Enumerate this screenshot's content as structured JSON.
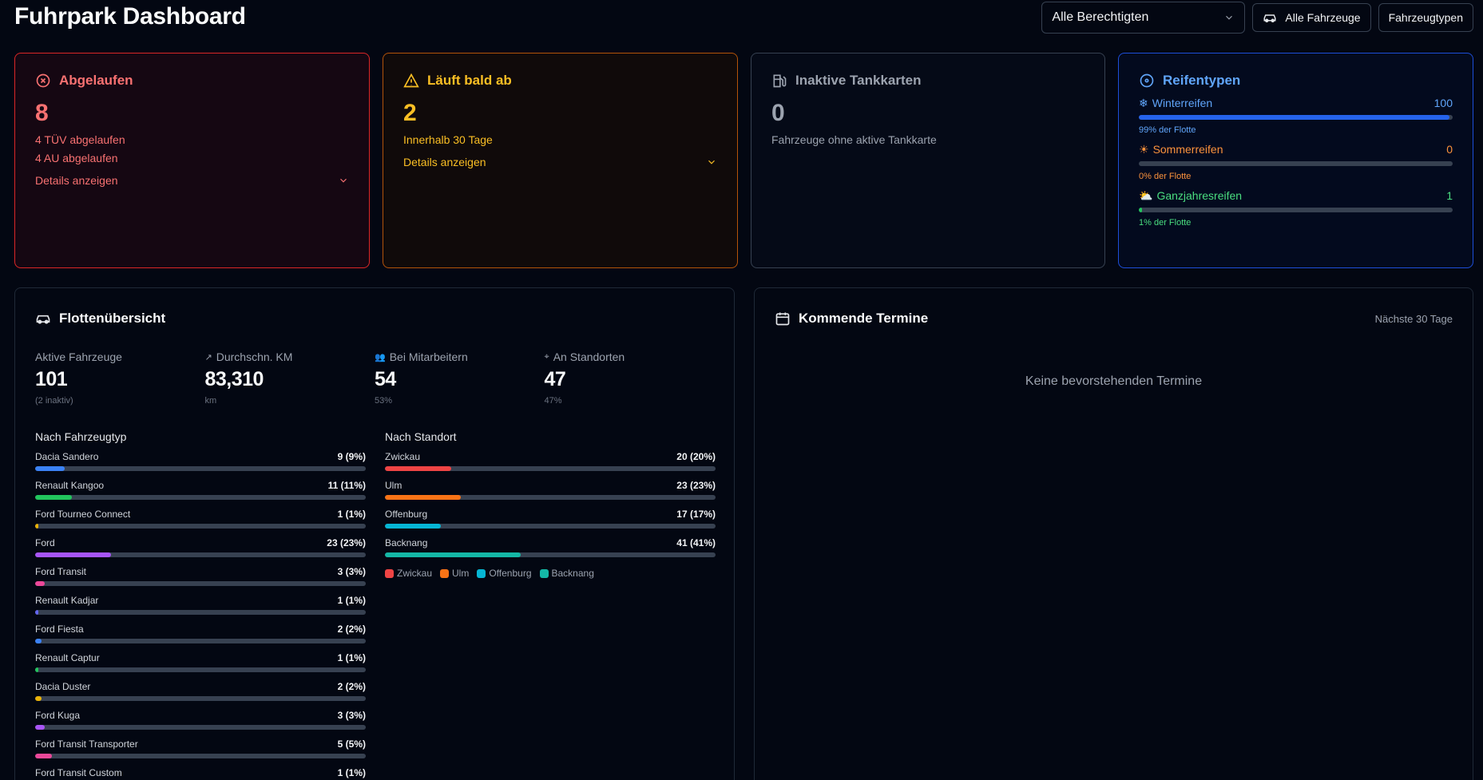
{
  "header": {
    "title": "Fuhrpark Dashboard",
    "select_value": "Alle Berechtigten",
    "btn_all_vehicles": "Alle Fahrzeuge",
    "btn_vehicle_types": "Fahrzeugtypen"
  },
  "expired": {
    "title": "Abgelaufen",
    "count": "8",
    "line1": "4 TÜV abgelaufen",
    "line2": "4 AU abgelaufen",
    "details": "Details anzeigen"
  },
  "soon": {
    "title": "Läuft bald ab",
    "count": "2",
    "line1": "Innerhalb 30 Tage",
    "details": "Details anzeigen"
  },
  "fuel": {
    "title": "Inaktive Tankkarten",
    "count": "0",
    "line1": "Fahrzeuge ohne aktive Tankkarte"
  },
  "tires": {
    "title": "Reifentypen",
    "items": [
      {
        "label": "Winterreifen",
        "value": "100",
        "pct_text": "99% der Flotte",
        "fraction": 0.99,
        "color": "#2563eb",
        "text_color": "#60a5fa",
        "icon": "❄"
      },
      {
        "label": "Sommerreifen",
        "value": "0",
        "pct_text": "0% der Flotte",
        "fraction": 0.0,
        "color": "#f97316",
        "text_color": "#fb923c",
        "icon": "☀"
      },
      {
        "label": "Ganzjahresreifen",
        "value": "1",
        "pct_text": "1% der Flotte",
        "fraction": 0.01,
        "color": "#22c55e",
        "text_color": "#4ade80",
        "icon": "⛅"
      }
    ]
  },
  "fleet": {
    "title": "Flottenübersicht",
    "stats": [
      {
        "label": "Aktive Fahrzeuge",
        "value": "101",
        "sub": "(2 inaktiv)",
        "icon": ""
      },
      {
        "label": "Durchschn. KM",
        "value": "83,310",
        "sub": "km",
        "icon": "↗"
      },
      {
        "label": "Bei Mitarbeitern",
        "value": "54",
        "sub": "53%",
        "icon": "👥"
      },
      {
        "label": "An Standorten",
        "value": "47",
        "sub": "47%",
        "icon": "⌖"
      }
    ],
    "by_type_title": "Nach Fahrzeugtyp",
    "by_type": [
      {
        "label": "Dacia Sandero",
        "value": "9 (9%)",
        "fraction": 0.09,
        "color": "#3b82f6"
      },
      {
        "label": "Renault Kangoo",
        "value": "11 (11%)",
        "fraction": 0.11,
        "color": "#22c55e"
      },
      {
        "label": "Ford Tourneo Connect",
        "value": "1 (1%)",
        "fraction": 0.01,
        "color": "#eab308"
      },
      {
        "label": "Ford",
        "value": "23 (23%)",
        "fraction": 0.23,
        "color": "#a855f7"
      },
      {
        "label": "Ford Transit",
        "value": "3 (3%)",
        "fraction": 0.03,
        "color": "#ec4899"
      },
      {
        "label": "Renault Kadjar",
        "value": "1 (1%)",
        "fraction": 0.01,
        "color": "#6366f1"
      },
      {
        "label": "Ford Fiesta",
        "value": "2 (2%)",
        "fraction": 0.02,
        "color": "#3b82f6"
      },
      {
        "label": "Renault Captur",
        "value": "1 (1%)",
        "fraction": 0.01,
        "color": "#22c55e"
      },
      {
        "label": "Dacia Duster",
        "value": "2 (2%)",
        "fraction": 0.02,
        "color": "#eab308"
      },
      {
        "label": "Ford Kuga",
        "value": "3 (3%)",
        "fraction": 0.03,
        "color": "#a855f7"
      },
      {
        "label": "Ford Transit Transporter",
        "value": "5 (5%)",
        "fraction": 0.05,
        "color": "#ec4899"
      },
      {
        "label": "Ford Transit Custom",
        "value": "1 (1%)",
        "fraction": 0.01,
        "color": "#6366f1"
      }
    ],
    "by_location_title": "Nach Standort",
    "by_location": [
      {
        "label": "Zwickau",
        "value": "20 (20%)",
        "fraction": 0.2,
        "color": "#ef4444"
      },
      {
        "label": "Ulm",
        "value": "23 (23%)",
        "fraction": 0.23,
        "color": "#f97316"
      },
      {
        "label": "Offenburg",
        "value": "17 (17%)",
        "fraction": 0.17,
        "color": "#06b6d4"
      },
      {
        "label": "Backnang",
        "value": "41 (41%)",
        "fraction": 0.41,
        "color": "#14b8a6"
      }
    ]
  },
  "appointments": {
    "title": "Kommende Termine",
    "range": "Nächste 30 Tage",
    "empty": "Keine bevorstehenden Termine"
  }
}
